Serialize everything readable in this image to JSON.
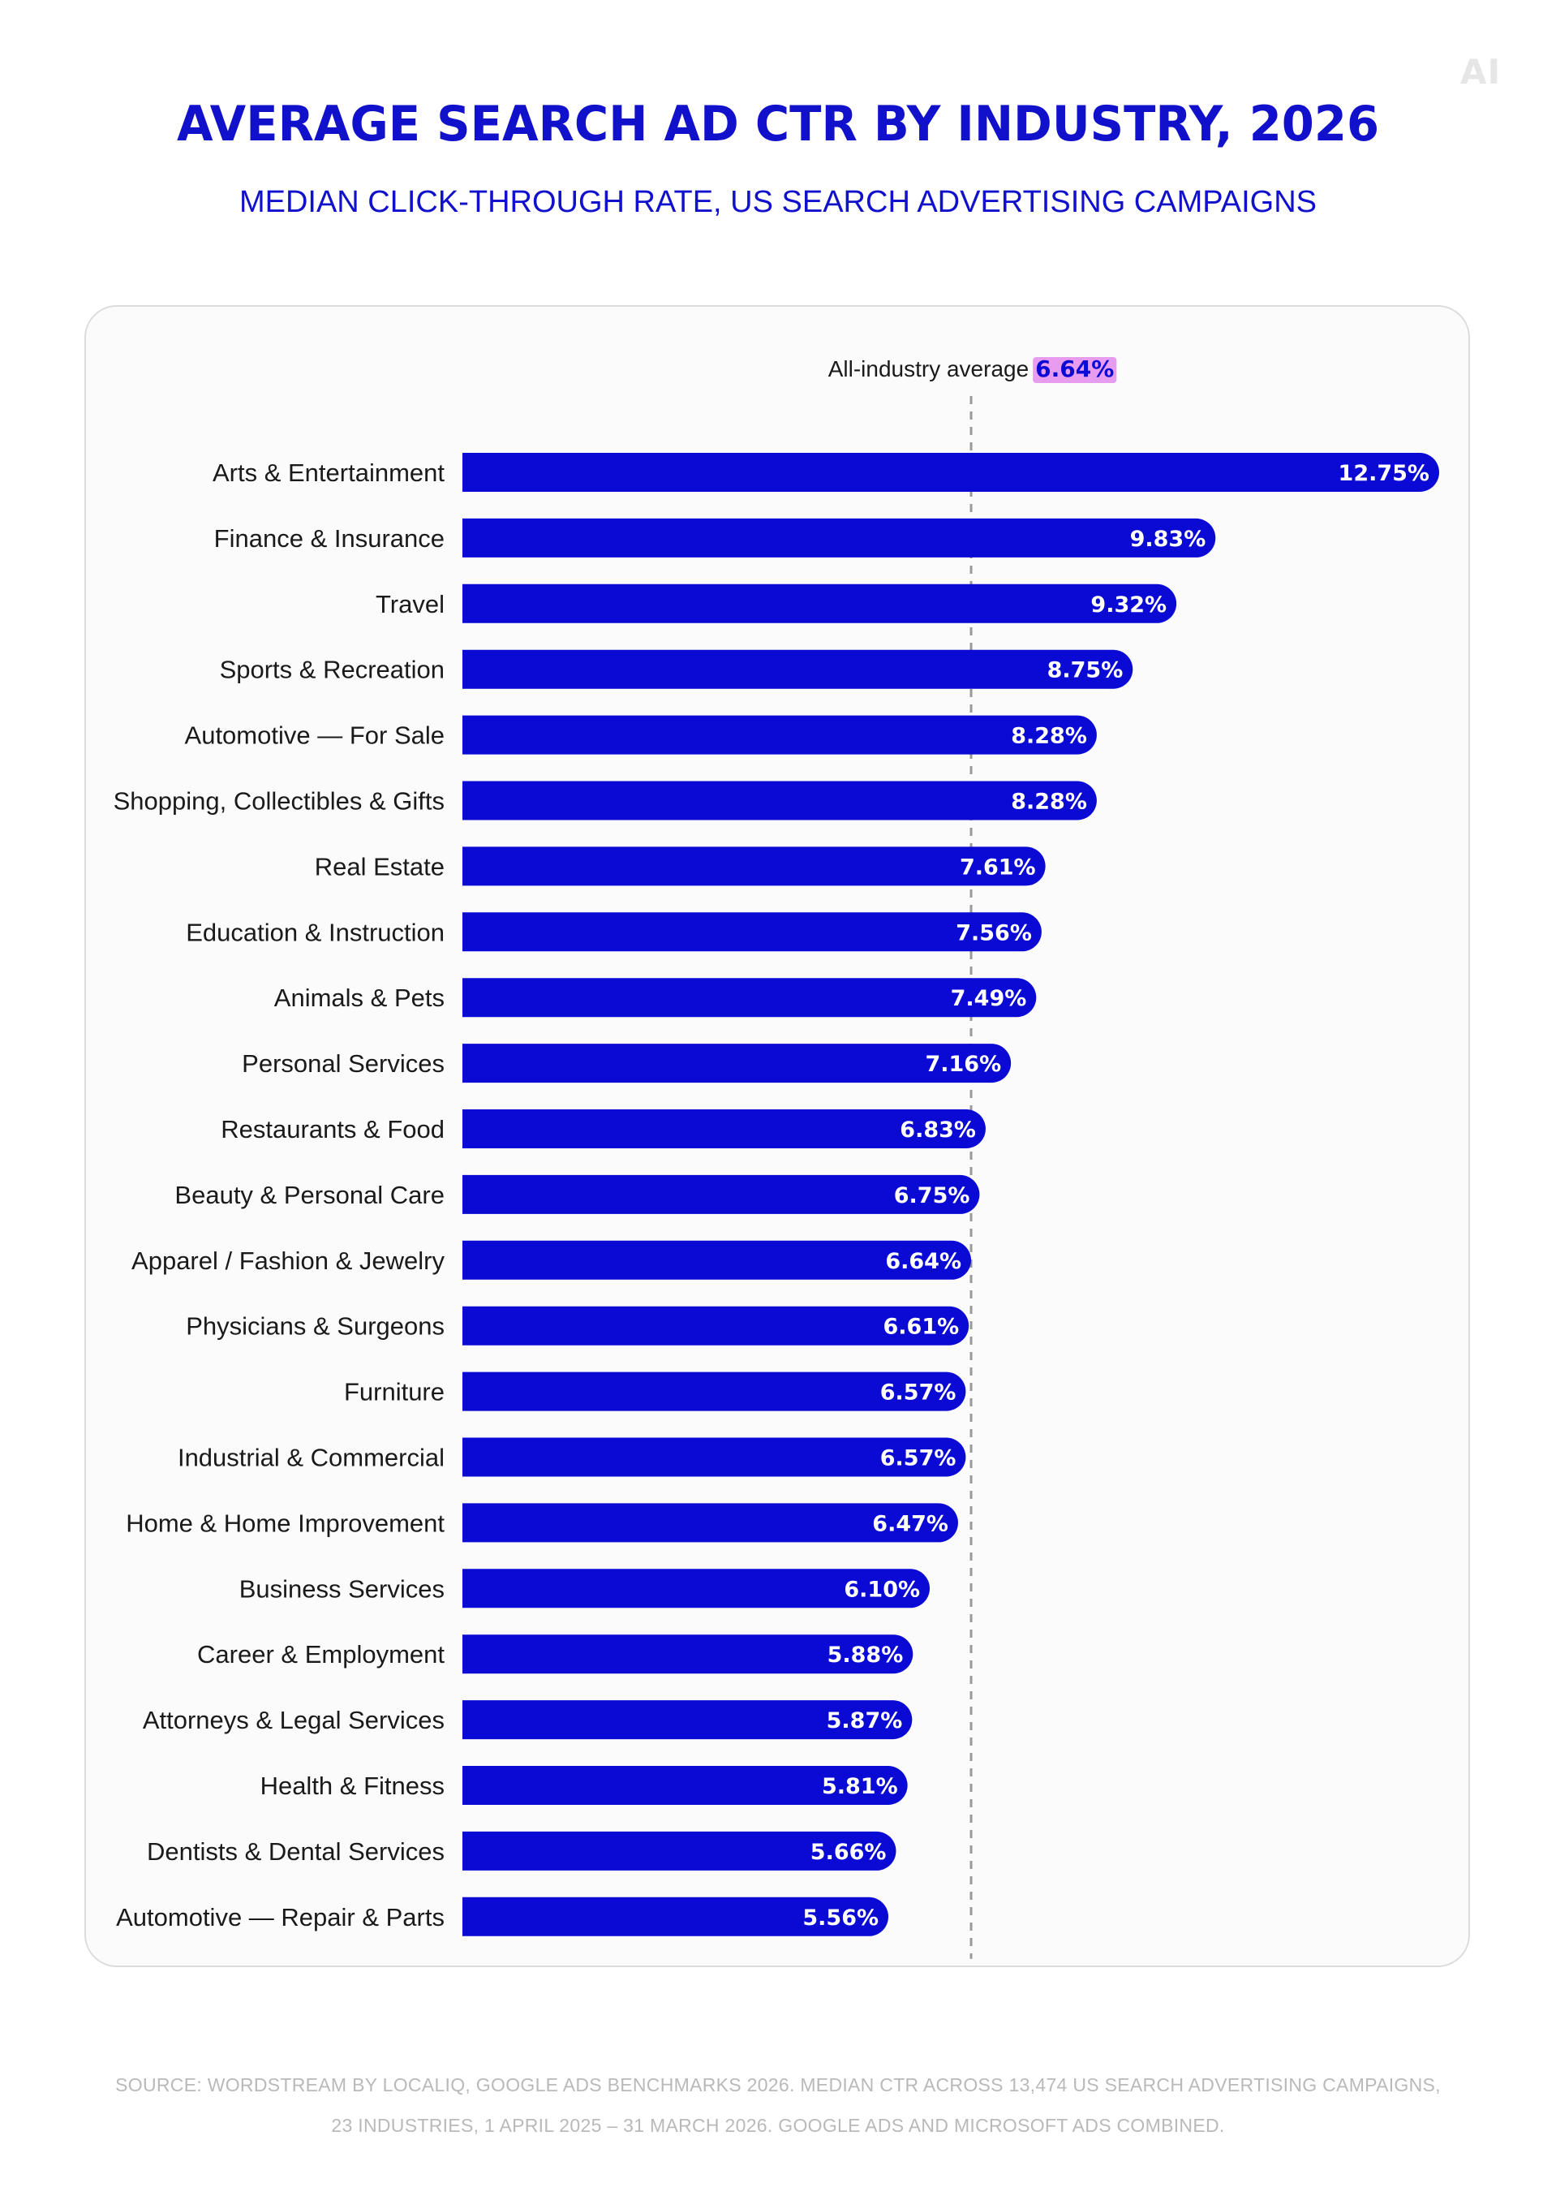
{
  "brand": {
    "logo_text": "AI"
  },
  "header": {
    "title": "AVERAGE SEARCH AD CTR BY INDUSTRY, 2026",
    "subtitle": "MEDIAN CLICK-THROUGH RATE, US SEARCH ADVERTISING CAMPAIGNS"
  },
  "colors": {
    "bar": "#0a0ad4",
    "title": "#1111cc",
    "reference_highlight": "#e89cf0",
    "reference_line": "#9a9a9a",
    "footnote": "#b9b9b9"
  },
  "chart_data": {
    "type": "bar",
    "orientation": "horizontal",
    "categories": [
      "Arts & Entertainment",
      "Finance & Insurance",
      "Travel",
      "Sports & Recreation",
      "Automotive — For Sale",
      "Shopping, Collectibles & Gifts",
      "Real Estate",
      "Education & Instruction",
      "Animals & Pets",
      "Personal Services",
      "Restaurants & Food",
      "Beauty & Personal Care",
      "Apparel / Fashion & Jewelry",
      "Physicians & Surgeons",
      "Furniture",
      "Industrial & Commercial",
      "Home & Home Improvement",
      "Business Services",
      "Career & Employment",
      "Attorneys & Legal Services",
      "Health & Fitness",
      "Dentists & Dental Services",
      "Automotive — Repair & Parts"
    ],
    "values": [
      12.75,
      9.83,
      9.32,
      8.75,
      8.28,
      8.28,
      7.61,
      7.56,
      7.49,
      7.16,
      6.83,
      6.75,
      6.64,
      6.61,
      6.57,
      6.57,
      6.47,
      6.1,
      5.88,
      5.87,
      5.81,
      5.66,
      5.56
    ],
    "value_labels": [
      "12.75%",
      "9.83%",
      "9.32%",
      "8.75%",
      "8.28%",
      "8.28%",
      "7.61%",
      "7.56%",
      "7.49%",
      "7.16%",
      "6.83%",
      "6.75%",
      "6.64%",
      "6.61%",
      "6.57%",
      "6.57%",
      "6.47%",
      "6.10%",
      "5.88%",
      "5.87%",
      "5.81%",
      "5.66%",
      "5.56%"
    ],
    "xlim": [
      0,
      12.75
    ],
    "reference_line": {
      "value": 6.64,
      "label": "All-industry average",
      "value_label": "6.64%",
      "style": "dashed"
    },
    "grid": false,
    "legend": "none"
  },
  "footnote": {
    "line1": "SOURCE: WORDSTREAM BY LOCALIQ, GOOGLE ADS BENCHMARKS 2026. MEDIAN CTR ACROSS 13,474 US SEARCH ADVERTISING CAMPAIGNS,",
    "line2": "23 INDUSTRIES, 1 APRIL 2025 – 31 MARCH 2026. GOOGLE ADS AND MICROSOFT ADS COMBINED."
  }
}
